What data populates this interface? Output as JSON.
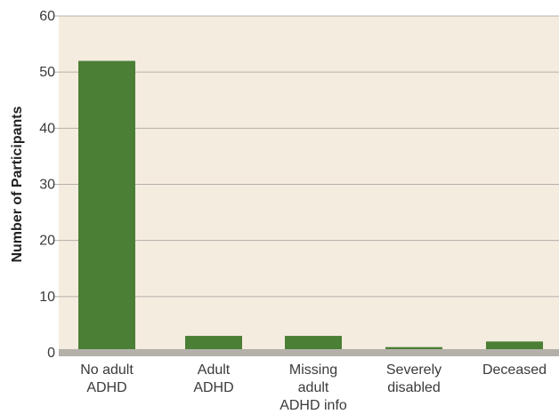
{
  "chart_data": {
    "type": "bar",
    "categories": [
      [
        "No adult",
        "ADHD"
      ],
      [
        "Adult",
        "ADHD"
      ],
      [
        "Missing",
        "adult",
        "ADHD info"
      ],
      [
        "Severely",
        "disabled"
      ],
      [
        "Deceased"
      ]
    ],
    "values": [
      52,
      3,
      3,
      1,
      2
    ],
    "title": "",
    "xlabel": "",
    "ylabel": "Number of Participants",
    "ylim": [
      0,
      60
    ],
    "yticks": [
      0,
      10,
      20,
      30,
      40,
      50,
      60
    ],
    "grid": true,
    "legend": "none"
  },
  "colors": {
    "plot_background": "#f5ece0",
    "bar": "#4a7f35",
    "gridline": "#b4b0aa",
    "baseline": "#b4b0aa"
  }
}
